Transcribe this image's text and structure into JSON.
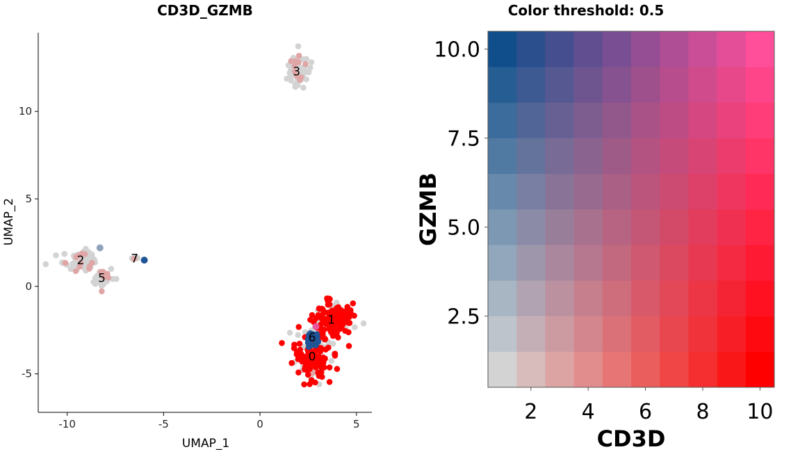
{
  "chart_data": [
    {
      "type": "scatter",
      "title": "CD3D_GZMB",
      "xlabel": "UMAP_1",
      "ylabel": "UMAP_2",
      "xlim": [
        -11.5,
        5.8
      ],
      "ylim": [
        -7.2,
        14.5
      ],
      "xticks": [
        -10,
        -5,
        0,
        5
      ],
      "yticks": [
        -5,
        0,
        5,
        10
      ],
      "grid": false,
      "legend": "none",
      "point_colors": {
        "background": "#d3d3d3",
        "faint_cd3d": "#e0a6a6",
        "high_cd3d": "#ff0000",
        "high_gzmb": "#1f5597",
        "faint_gzmb": "#8fa3bd",
        "both": "#e9559a"
      },
      "clusters": [
        {
          "label": "0",
          "x": 2.7,
          "y": -4.0,
          "sx": 0.75,
          "sy": 1.1,
          "n": 180,
          "mix": "red"
        },
        {
          "label": "1",
          "x": 3.7,
          "y": -1.9,
          "sx": 0.85,
          "sy": 0.95,
          "n": 170,
          "mix": "red"
        },
        {
          "label": "2",
          "x": -9.3,
          "y": 1.5,
          "sx": 0.75,
          "sy": 0.45,
          "n": 75,
          "mix": "grey"
        },
        {
          "label": "3",
          "x": 1.9,
          "y": 12.3,
          "sx": 0.5,
          "sy": 0.75,
          "n": 85,
          "mix": "grey"
        },
        {
          "label": "5",
          "x": -8.2,
          "y": 0.5,
          "sx": 0.45,
          "sy": 0.45,
          "n": 40,
          "mix": "grey"
        },
        {
          "label": "6",
          "x": 2.7,
          "y": -2.9,
          "sx": 0.25,
          "sy": 0.28,
          "n": 45,
          "mix": "blue"
        },
        {
          "label": "7",
          "x": -6.5,
          "y": 1.6,
          "sx": 0.35,
          "sy": 0.05,
          "n": 7,
          "mix": "grey"
        }
      ],
      "highlight_points": [
        {
          "x": -6.0,
          "y": 1.5,
          "group": "high_gzmb"
        },
        {
          "x": -8.3,
          "y": 2.2,
          "group": "faint_gzmb"
        },
        {
          "x": 2.9,
          "y": -2.3,
          "group": "both"
        }
      ]
    },
    {
      "type": "heatmap",
      "title": "Color threshold: 0.5",
      "xlabel": "CD3D",
      "ylabel": "GZMB",
      "xlim": [
        0.5,
        10.5
      ],
      "ylim": [
        0.5,
        10.5
      ],
      "xticks": [
        "2",
        "4",
        "6",
        "8",
        "10"
      ],
      "yticks": [
        "2.5",
        "5.0",
        "7.5",
        "10.0"
      ],
      "x": [
        1,
        2,
        3,
        4,
        5,
        6,
        7,
        8,
        9,
        10
      ],
      "y": [
        1,
        2,
        3,
        4,
        5,
        6,
        7,
        8,
        9,
        10
      ],
      "colors": {
        "low": "#d3d3d3",
        "cd3d_high": "#ff0000",
        "gzmb_high": "#104e8b",
        "both_high": "#ff4e9a"
      }
    }
  ]
}
